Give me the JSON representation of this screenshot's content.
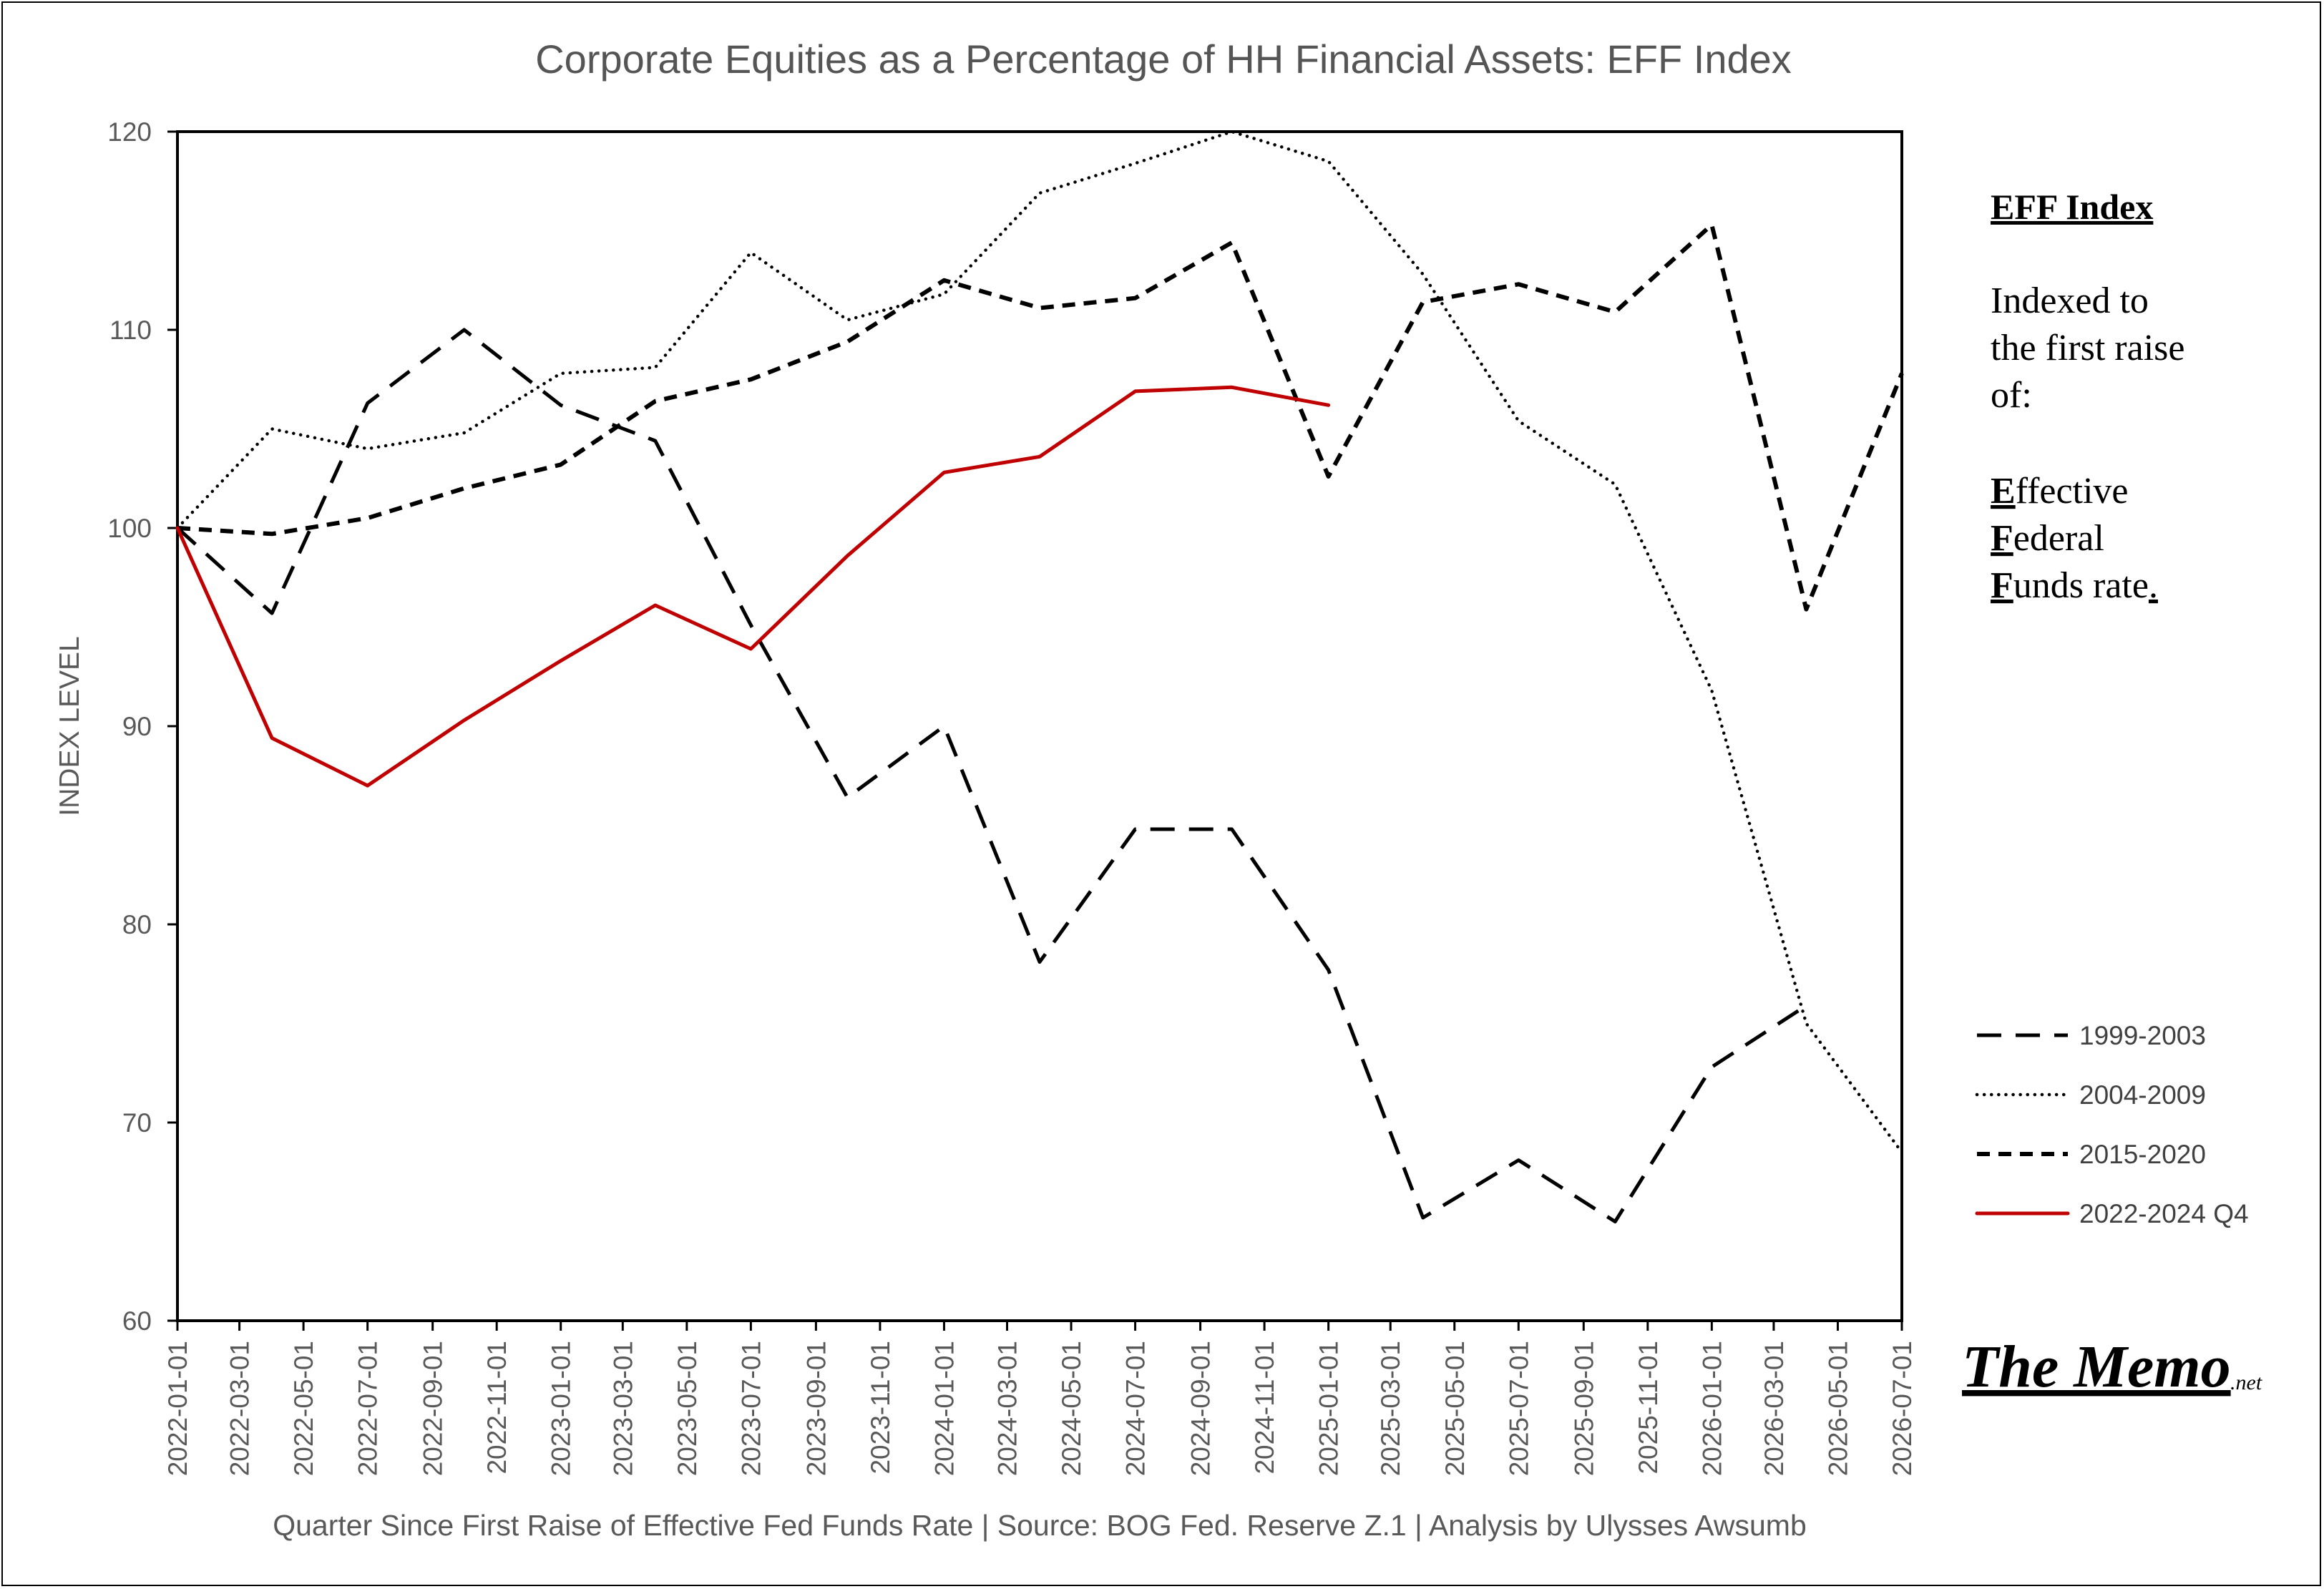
{
  "chart_data": {
    "type": "line",
    "title": "Corporate Equities as a Percentage of HH Financial Assets: EFF Index",
    "ylabel": "INDEX LEVEL",
    "xlabel": "Quarter Since First Raise of Effective Fed Funds Rate  |  Source: BOG Fed. Reserve Z.1  |  Analysis by Ulysses Awsumb",
    "ylim": [
      60,
      120
    ],
    "yticks": [
      60,
      70,
      80,
      90,
      100,
      110,
      120
    ],
    "categories": [
      "2022-01-01",
      "2022-03-01",
      "2022-05-01",
      "2022-07-01",
      "2022-09-01",
      "2022-11-01",
      "2023-01-01",
      "2023-03-01",
      "2023-05-01",
      "2023-07-01",
      "2023-09-01",
      "2023-11-01",
      "2024-01-01",
      "2024-03-01",
      "2024-05-01",
      "2024-07-01",
      "2024-09-01",
      "2024-11-01",
      "2025-01-01",
      "2025-03-01",
      "2025-05-01",
      "2025-07-01",
      "2025-09-01",
      "2025-11-01",
      "2026-01-01",
      "2026-03-01",
      "2026-05-01",
      "2026-07-01"
    ],
    "grid": false,
    "legend_position": "right",
    "series": [
      {
        "name": "1999-2003",
        "color": "#000000",
        "style": "long-dash",
        "points": [
          {
            "x": "2022-01-01",
            "y": 100
          },
          {
            "x": "2022-04-01",
            "y": 95.7
          },
          {
            "x": "2022-07-01",
            "y": 106.3
          },
          {
            "x": "2022-10-01",
            "y": 110.0
          },
          {
            "x": "2023-01-01",
            "y": 106.2
          },
          {
            "x": "2023-04-01",
            "y": 104.4
          },
          {
            "x": "2023-07-01",
            "y": 95.1
          },
          {
            "x": "2023-10-01",
            "y": 86.4
          },
          {
            "x": "2024-01-01",
            "y": 90.0
          },
          {
            "x": "2024-04-01",
            "y": 78.1
          },
          {
            "x": "2024-07-01",
            "y": 84.8
          },
          {
            "x": "2024-10-01",
            "y": 84.8
          },
          {
            "x": "2025-01-01",
            "y": 77.7
          },
          {
            "x": "2025-04-01",
            "y": 65.2
          },
          {
            "x": "2025-07-01",
            "y": 68.1
          },
          {
            "x": "2025-10-01",
            "y": 65.0
          },
          {
            "x": "2026-01-01",
            "y": 72.8
          },
          {
            "x": "2026-04-01",
            "y": 75.9
          }
        ]
      },
      {
        "name": "2004-2009",
        "color": "#000000",
        "style": "dotted",
        "points": [
          {
            "x": "2022-01-01",
            "y": 100
          },
          {
            "x": "2022-04-01",
            "y": 105.0
          },
          {
            "x": "2022-07-01",
            "y": 104.0
          },
          {
            "x": "2022-10-01",
            "y": 104.8
          },
          {
            "x": "2023-01-01",
            "y": 107.8
          },
          {
            "x": "2023-04-01",
            "y": 108.1
          },
          {
            "x": "2023-07-01",
            "y": 113.9
          },
          {
            "x": "2023-10-01",
            "y": 110.5
          },
          {
            "x": "2024-01-01",
            "y": 111.8
          },
          {
            "x": "2024-04-01",
            "y": 116.9
          },
          {
            "x": "2024-07-01",
            "y": 118.4
          },
          {
            "x": "2024-10-01",
            "y": 120.0
          },
          {
            "x": "2025-01-01",
            "y": 118.5
          },
          {
            "x": "2025-04-01",
            "y": 112.8
          },
          {
            "x": "2025-07-01",
            "y": 105.4
          },
          {
            "x": "2025-10-01",
            "y": 102.2
          },
          {
            "x": "2026-01-01",
            "y": 91.8
          },
          {
            "x": "2026-04-01",
            "y": 75.0
          },
          {
            "x": "2026-07-01",
            "y": 68.5
          }
        ]
      },
      {
        "name": "2015-2020",
        "color": "#000000",
        "style": "short-dash",
        "points": [
          {
            "x": "2022-01-01",
            "y": 100
          },
          {
            "x": "2022-04-01",
            "y": 99.7
          },
          {
            "x": "2022-07-01",
            "y": 100.5
          },
          {
            "x": "2022-10-01",
            "y": 102.0
          },
          {
            "x": "2023-01-01",
            "y": 103.2
          },
          {
            "x": "2023-04-01",
            "y": 106.4
          },
          {
            "x": "2023-07-01",
            "y": 107.5
          },
          {
            "x": "2023-10-01",
            "y": 109.4
          },
          {
            "x": "2024-01-01",
            "y": 112.5
          },
          {
            "x": "2024-04-01",
            "y": 111.1
          },
          {
            "x": "2024-07-01",
            "y": 111.6
          },
          {
            "x": "2024-10-01",
            "y": 114.4
          },
          {
            "x": "2025-01-01",
            "y": 102.6
          },
          {
            "x": "2025-04-01",
            "y": 111.4
          },
          {
            "x": "2025-07-01",
            "y": 112.3
          },
          {
            "x": "2025-10-01",
            "y": 110.9
          },
          {
            "x": "2026-01-01",
            "y": 115.3
          },
          {
            "x": "2026-04-01",
            "y": 95.9
          },
          {
            "x": "2026-07-01",
            "y": 107.8
          }
        ]
      },
      {
        "name": "2022-2024 Q4",
        "color": "#c00000",
        "style": "solid",
        "points": [
          {
            "x": "2022-01-01",
            "y": 100
          },
          {
            "x": "2022-04-01",
            "y": 89.4
          },
          {
            "x": "2022-07-01",
            "y": 87.0
          },
          {
            "x": "2022-10-01",
            "y": 90.3
          },
          {
            "x": "2023-01-01",
            "y": 93.3
          },
          {
            "x": "2023-04-01",
            "y": 96.1
          },
          {
            "x": "2023-07-01",
            "y": 93.9
          },
          {
            "x": "2023-10-01",
            "y": 98.6
          },
          {
            "x": "2024-01-01",
            "y": 102.8
          },
          {
            "x": "2024-04-01",
            "y": 103.6
          },
          {
            "x": "2024-07-01",
            "y": 106.9
          },
          {
            "x": "2024-10-01",
            "y": 107.1
          },
          {
            "x": "2025-01-01",
            "y": 106.2
          }
        ]
      }
    ]
  },
  "note": {
    "title": "EFF Index",
    "line1": "Indexed to",
    "line2": "the first raise",
    "line3": "of:",
    "e_initial": "E",
    "e_rest": "ffective",
    "f_initial": "F",
    "f_rest": "ederal",
    "fu_initial": "F",
    "fu_rest": "unds rate",
    "fu_period": "."
  },
  "brand": {
    "name": "The Memo",
    "suffix": ".net"
  }
}
